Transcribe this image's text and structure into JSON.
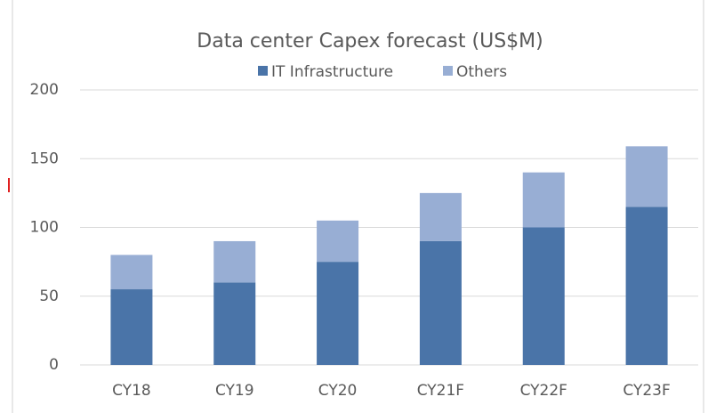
{
  "chart_data": {
    "type": "stacked_bar",
    "title": "Data center Capex forecast (US$M)",
    "categories": [
      "CY18",
      "CY19",
      "CY20",
      "CY21F",
      "CY22F",
      "CY23F"
    ],
    "series": [
      {
        "name": "IT Infrastructure",
        "color": "#4a74a8",
        "values": [
          55,
          60,
          75,
          90,
          100,
          115
        ]
      },
      {
        "name": "Others",
        "color": "#98aed4",
        "values": [
          25,
          30,
          30,
          35,
          40,
          44
        ]
      }
    ],
    "ylim": [
      0,
      200
    ],
    "yticks": [
      0,
      50,
      100,
      150,
      200
    ],
    "grid": true,
    "legend": "top"
  }
}
